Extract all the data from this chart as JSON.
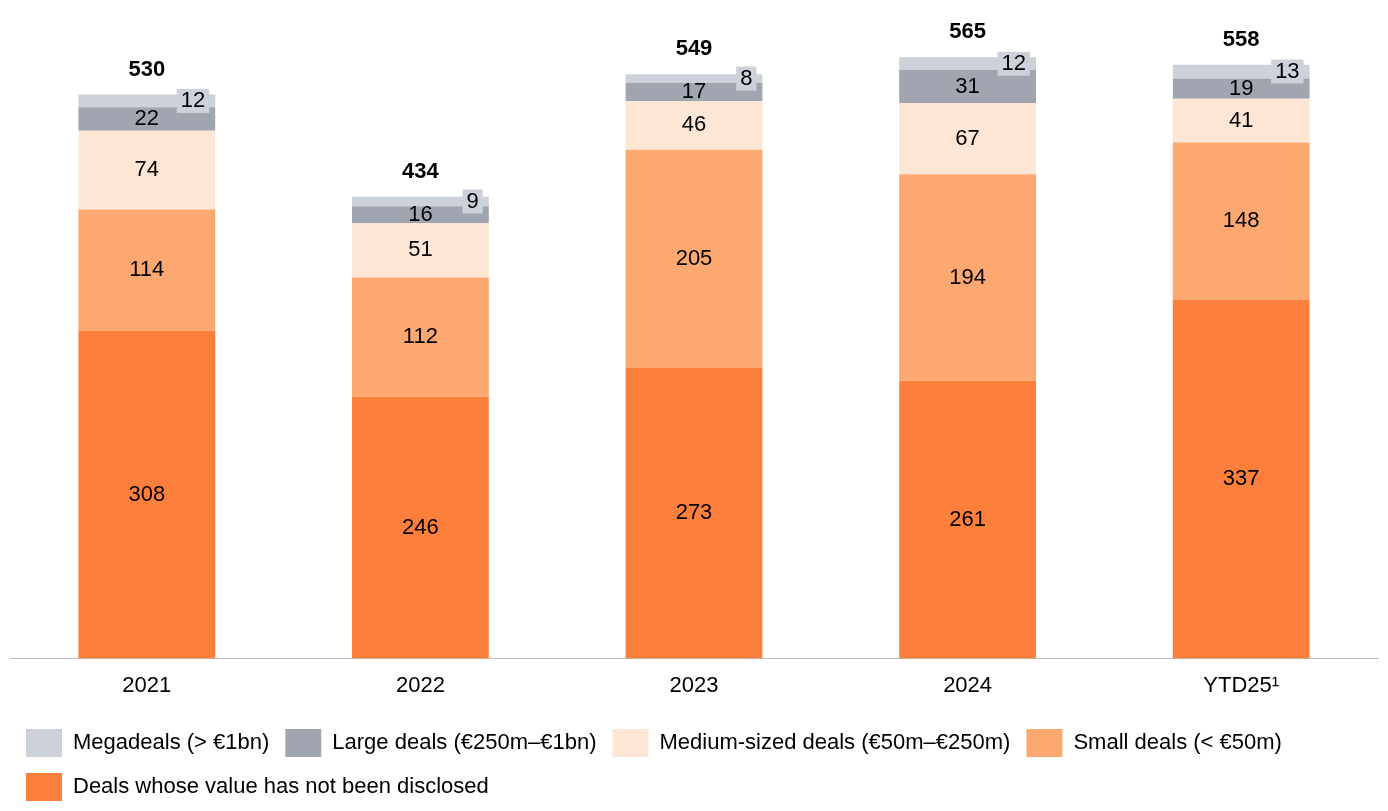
{
  "chart_data": {
    "type": "bar",
    "stacked": true,
    "data_labels": true,
    "legend": "bottom",
    "grid": false,
    "categories": [
      "2021",
      "2022",
      "2023",
      "2024",
      "YTD25¹"
    ],
    "series": [
      {
        "name": "Deals whose value has not been disclosed",
        "color": "#fd7f3c",
        "values": [
          308,
          246,
          273,
          261,
          337
        ]
      },
      {
        "name": "Small deals (< €50m)",
        "color": "#fda870",
        "values": [
          114,
          112,
          205,
          194,
          148
        ]
      },
      {
        "name": "Medium-sized deals (€50m–€250m)",
        "color": "#fde6d3",
        "values": [
          74,
          51,
          46,
          67,
          41
        ]
      },
      {
        "name": "Large deals (€250m–€1bn)",
        "color": "#a1a5b0",
        "values": [
          22,
          16,
          17,
          31,
          19
        ]
      },
      {
        "name": "Megadeals (> €1bn)",
        "color": "#cdd1d9",
        "values": [
          12,
          9,
          8,
          12,
          13
        ]
      }
    ],
    "totals": [
      "530",
      "434",
      "549",
      "565",
      "558"
    ]
  }
}
